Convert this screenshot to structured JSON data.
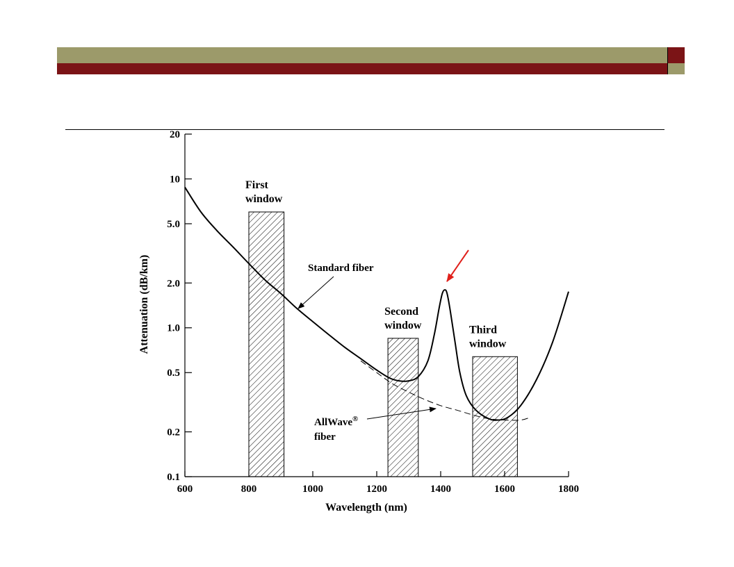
{
  "colors": {
    "header_olive": "#9c9a6a",
    "header_maroon": "#7b1416",
    "arrow_red": "#e0201b"
  },
  "chart_data": {
    "type": "line",
    "xlabel": "Wavelength (nm)",
    "ylabel": "Attenuation (dB/km)",
    "xlim": [
      600,
      1800
    ],
    "ylim": [
      0.1,
      20
    ],
    "y_scale": "log",
    "x_ticks": [
      {
        "value": 600,
        "label": "600"
      },
      {
        "value": 800,
        "label": "800"
      },
      {
        "value": 1000,
        "label": "1000"
      },
      {
        "value": 1200,
        "label": "1200"
      },
      {
        "value": 1400,
        "label": "1400"
      },
      {
        "value": 1600,
        "label": "1600"
      },
      {
        "value": 1800,
        "label": "1800"
      }
    ],
    "y_ticks": [
      {
        "value": 20,
        "label": "20"
      },
      {
        "value": 10,
        "label": "10"
      },
      {
        "value": 5,
        "label": "5.0"
      },
      {
        "value": 2,
        "label": "2.0"
      },
      {
        "value": 1,
        "label": "1.0"
      },
      {
        "value": 0.5,
        "label": "0.5"
      },
      {
        "value": 0.2,
        "label": "0.2"
      },
      {
        "value": 0.1,
        "label": "0.1"
      }
    ],
    "series": [
      {
        "name": "Standard fiber",
        "style": "solid",
        "points": [
          [
            600,
            8.8
          ],
          [
            650,
            6.0
          ],
          [
            700,
            4.5
          ],
          [
            750,
            3.5
          ],
          [
            800,
            2.7
          ],
          [
            850,
            2.1
          ],
          [
            900,
            1.7
          ],
          [
            950,
            1.35
          ],
          [
            1000,
            1.1
          ],
          [
            1050,
            0.9
          ],
          [
            1100,
            0.74
          ],
          [
            1150,
            0.62
          ],
          [
            1200,
            0.52
          ],
          [
            1240,
            0.46
          ],
          [
            1270,
            0.44
          ],
          [
            1300,
            0.44
          ],
          [
            1330,
            0.47
          ],
          [
            1360,
            0.6
          ],
          [
            1380,
            0.9
          ],
          [
            1395,
            1.35
          ],
          [
            1405,
            1.7
          ],
          [
            1413,
            1.8
          ],
          [
            1420,
            1.7
          ],
          [
            1430,
            1.3
          ],
          [
            1445,
            0.8
          ],
          [
            1460,
            0.5
          ],
          [
            1480,
            0.35
          ],
          [
            1510,
            0.28
          ],
          [
            1550,
            0.245
          ],
          [
            1580,
            0.24
          ],
          [
            1610,
            0.25
          ],
          [
            1650,
            0.3
          ],
          [
            1700,
            0.45
          ],
          [
            1750,
            0.8
          ],
          [
            1800,
            1.75
          ]
        ]
      },
      {
        "name": "AllWave® fiber",
        "style": "dashed",
        "points": [
          [
            1150,
            0.6
          ],
          [
            1200,
            0.5
          ],
          [
            1250,
            0.42
          ],
          [
            1300,
            0.37
          ],
          [
            1350,
            0.33
          ],
          [
            1400,
            0.3
          ],
          [
            1450,
            0.28
          ],
          [
            1500,
            0.26
          ],
          [
            1550,
            0.245
          ],
          [
            1600,
            0.24
          ],
          [
            1650,
            0.24
          ],
          [
            1680,
            0.25
          ]
        ]
      }
    ],
    "windows": [
      {
        "label_lines": [
          "First",
          "window"
        ],
        "x_start": 800,
        "x_end": 910,
        "top": 6.0
      },
      {
        "label_lines": [
          "Second",
          "window"
        ],
        "x_start": 1235,
        "x_end": 1330,
        "top": 0.85
      },
      {
        "label_lines": [
          "Third",
          "window"
        ],
        "x_start": 1500,
        "x_end": 1640,
        "top": 0.64
      }
    ],
    "annotations": {
      "standard_fiber": "Standard fiber",
      "allwave_line1": "AllWave",
      "allwave_reg": "®",
      "allwave_line2": "fiber"
    }
  }
}
